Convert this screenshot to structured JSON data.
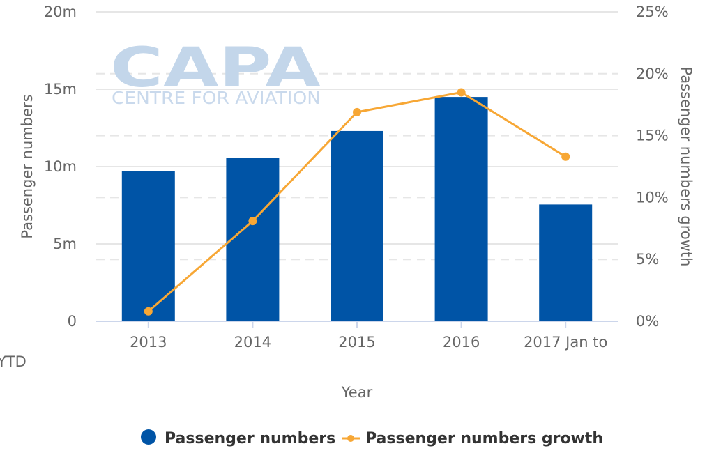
{
  "watermark": {
    "name": "CAPA",
    "subtitle": "CENTRE FOR AVIATION"
  },
  "chart_data": {
    "type": "bar",
    "categories": [
      "2013",
      "2014",
      "2015",
      "2016",
      "2017 Jan to YTD"
    ],
    "category_lines": [
      [
        "2013"
      ],
      [
        "2014"
      ],
      [
        "2015"
      ],
      [
        "2016"
      ],
      [
        "2017 Jan to",
        "YTD"
      ]
    ],
    "series": [
      {
        "name": "Passenger numbers",
        "type": "bar",
        "axis": "left",
        "color": "#0054a6",
        "values": [
          9.7,
          10.55,
          12.3,
          14.5,
          7.55
        ]
      },
      {
        "name": "Passenger numbers growth",
        "type": "line",
        "axis": "right",
        "color": "#f7a735",
        "values": [
          0.8,
          8.1,
          16.9,
          18.5,
          13.3
        ]
      }
    ],
    "xlabel": "Year",
    "ylabel": "Passenger numbers",
    "y2label": "Passenger numbers growth",
    "ylim": [
      0,
      20
    ],
    "y2lim": [
      0,
      25
    ],
    "yticks": [
      0,
      5,
      10,
      15,
      20
    ],
    "yticklabels": [
      "0",
      "5m",
      "10m",
      "15m",
      "20m"
    ],
    "y2ticks": [
      0,
      5,
      10,
      15,
      20,
      25
    ],
    "y2ticklabels": [
      "0%",
      "5%",
      "10%",
      "15%",
      "20%",
      "25%"
    ],
    "grid": true,
    "legend": {
      "position": "bottom-center",
      "items": [
        "Passenger numbers",
        "Passenger numbers growth"
      ]
    }
  }
}
